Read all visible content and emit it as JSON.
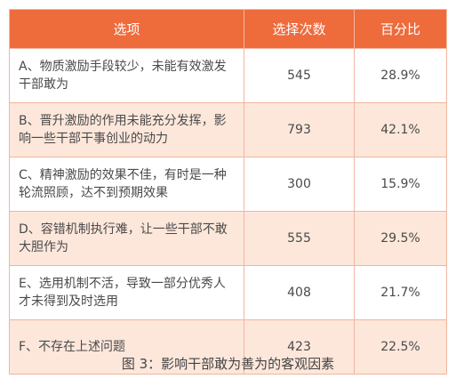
{
  "chart_data": {
    "type": "table",
    "columns": [
      "选项",
      "选择次数",
      "百分比"
    ],
    "rows": [
      [
        "A、物质激励手段较少，未能有效激发干部敢为",
        "545",
        "28.9%"
      ],
      [
        "B、晋升激励的作用未能充分发挥，影响一些干部干事创业的动力",
        "793",
        "42.1%"
      ],
      [
        "C、精神激励的效果不佳，有时是一种轮流照顾，达不到预期效果",
        "300",
        "15.9%"
      ],
      [
        "D、容错机制执行难，让一些干部不敢大胆作为",
        "555",
        "29.5%"
      ],
      [
        "E、选用机制不活，导致一部分优秀人才未得到及时选用",
        "408",
        "21.7%"
      ],
      [
        "F、不存在上述问题",
        "423",
        "22.5%"
      ]
    ],
    "caption": "图 3：影响干部敢为善为的客观因素",
    "header_color": "#ee6b3c",
    "alt_row_color": "#fde7db"
  }
}
